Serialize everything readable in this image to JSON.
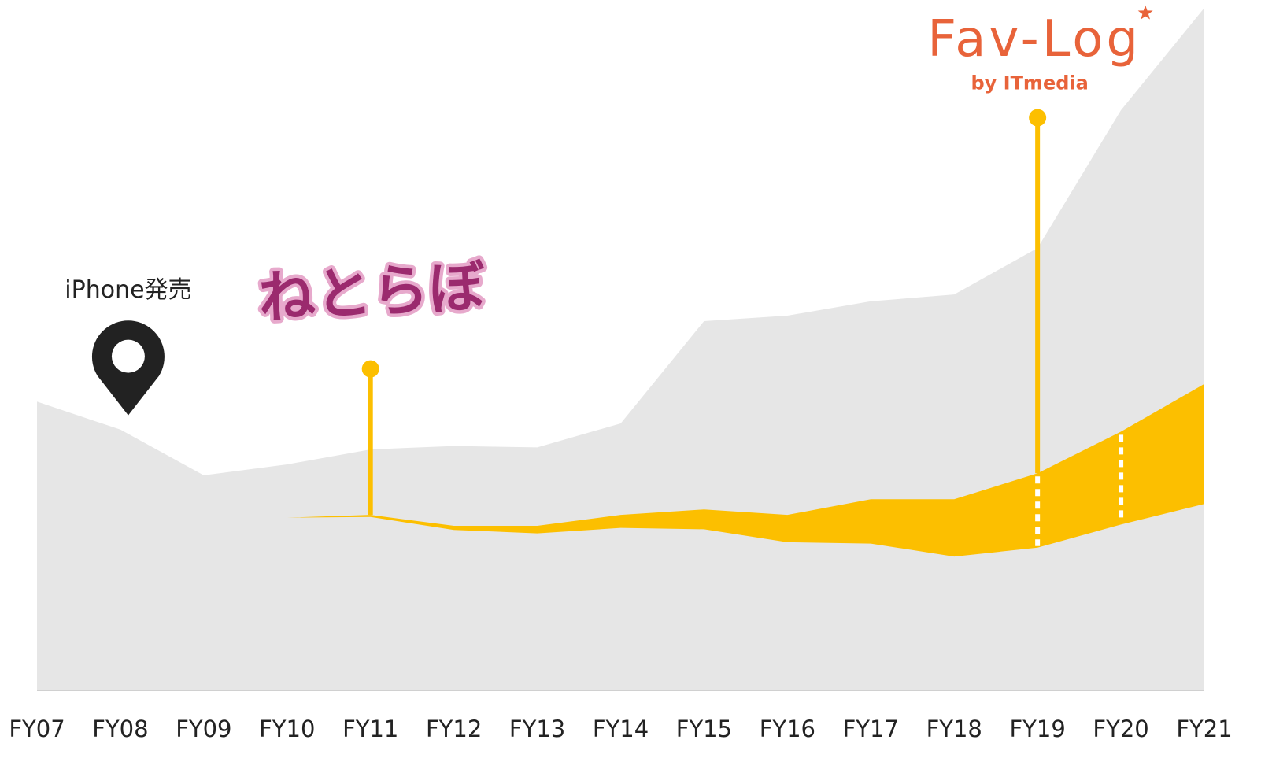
{
  "chart_data": {
    "type": "area",
    "categories": [
      "FY07",
      "FY08",
      "FY09",
      "FY10",
      "FY11",
      "FY12",
      "FY13",
      "FY14",
      "FY15",
      "FY16",
      "FY17",
      "FY18",
      "FY19",
      "FY20",
      "FY21"
    ],
    "series": [
      {
        "color": "#e6e6e6",
        "values": [
          42.3,
          38.2,
          31.5,
          33.1,
          35.3,
          35.8,
          35.6,
          39.1,
          54.1,
          54.9,
          57.0,
          58.0,
          64.8,
          85.0,
          100.0
        ]
      },
      {
        "color": "#fcbf00",
        "low": [
          null,
          null,
          null,
          25.3,
          25.4,
          23.5,
          23.0,
          23.8,
          23.6,
          21.7,
          21.5,
          19.6,
          20.9,
          24.3,
          27.3
        ],
        "values": [
          null,
          null,
          null,
          25.3,
          25.7,
          24.1,
          24.1,
          25.7,
          26.5,
          25.7,
          28.0,
          28.0,
          31.8,
          37.9,
          44.9
        ]
      }
    ],
    "ylim": [
      0,
      100
    ],
    "annotations": [
      {
        "x": "FY08",
        "text": "iPhone発売",
        "y": 40.3
      },
      {
        "x": "FY11",
        "text": "ねとらぼ",
        "y": 47.1
      },
      {
        "x": "FY19",
        "text": "Fav-Log",
        "subtext": "by ITmedia",
        "y": 83.9
      }
    ]
  }
}
